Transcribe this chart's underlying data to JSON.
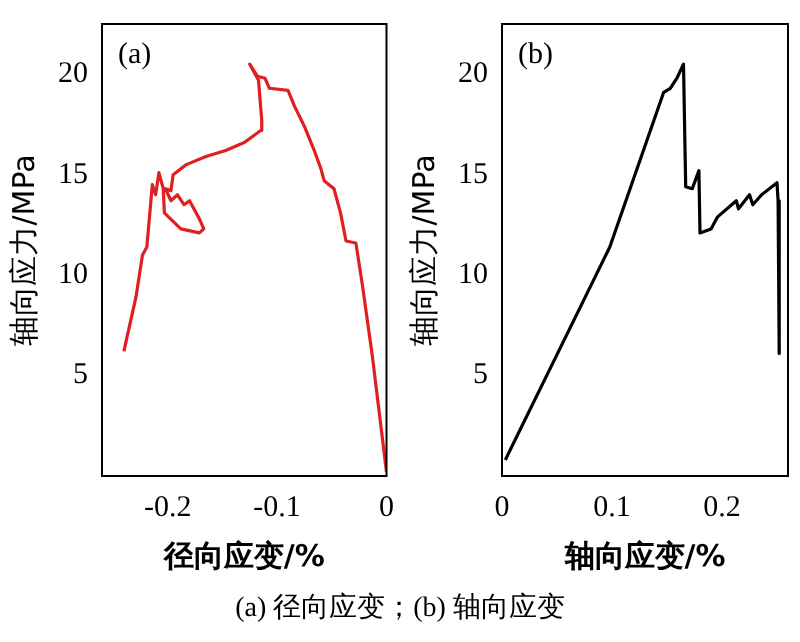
{
  "chart_data": [
    {
      "type": "line",
      "title": "(a)",
      "xlabel": "径向应变/%",
      "ylabel": "轴向应力/MPa",
      "xlim": [
        -0.26,
        0
      ],
      "xticks": [
        -0.2,
        -0.1,
        0
      ],
      "ylim": [
        0,
        22.5
      ],
      "yticks": [
        5,
        10,
        15,
        20
      ],
      "grid": false,
      "legend": false,
      "marker": "none",
      "line_style": "solid",
      "annotations": [
        "(a) 径向应变；(b) 轴向应变"
      ],
      "series": [
        {
          "color": "#e02020",
          "x": [
            -0.24,
            -0.229,
            -0.223,
            -0.219,
            -0.214,
            -0.211,
            -0.208,
            -0.204,
            -0.203,
            -0.188,
            -0.171,
            -0.167,
            -0.171,
            -0.18,
            -0.185,
            -0.191,
            -0.197,
            -0.202,
            -0.197,
            -0.195,
            -0.183,
            -0.165,
            -0.147,
            -0.13,
            -0.115,
            -0.114,
            -0.117,
            -0.125,
            -0.118,
            -0.111,
            -0.107,
            -0.09,
            -0.084,
            -0.075,
            -0.066,
            -0.06,
            -0.057,
            -0.048,
            -0.042,
            -0.037,
            -0.028,
            -0.022,
            -0.013,
            0
          ],
          "values": [
            6.2,
            8.9,
            11.0,
            11.4,
            14.5,
            14.0,
            15.1,
            14.3,
            13.1,
            12.3,
            12.1,
            12.3,
            12.8,
            13.7,
            13.5,
            14.0,
            13.7,
            14.3,
            14.2,
            15.0,
            15.5,
            15.9,
            16.2,
            16.6,
            17.2,
            17.7,
            19.7,
            20.5,
            19.9,
            19.8,
            19.3,
            19.2,
            18.4,
            17.4,
            16.2,
            15.3,
            14.7,
            14.3,
            13.1,
            11.7,
            11.6,
            9.5,
            6.0,
            0.2
          ]
        }
      ]
    },
    {
      "type": "line",
      "title": "(b)",
      "xlabel": "轴向应变/%",
      "ylabel": "轴向应力/MPa",
      "xlim": [
        0,
        0.26
      ],
      "xticks": [
        0,
        0.1,
        0.2
      ],
      "ylim": [
        0,
        22.5
      ],
      "yticks": [
        5,
        10,
        15,
        20
      ],
      "grid": false,
      "legend": false,
      "marker": "none",
      "line_style": "solid",
      "series": [
        {
          "color": "#000000",
          "x": [
            0.003,
            0.081,
            0.098,
            0.147,
            0.153,
            0.159,
            0.165,
            0.167,
            0.173,
            0.179,
            0.18,
            0.19,
            0.196,
            0.213,
            0.215,
            0.225,
            0.228,
            0.236,
            0.25,
            0.251,
            0.252
          ],
          "values": [
            0.8,
            9.5,
            11.4,
            19.1,
            19.3,
            19.8,
            20.5,
            14.4,
            14.3,
            15.2,
            12.1,
            12.3,
            12.9,
            13.7,
            13.3,
            14.0,
            13.5,
            14.0,
            14.6,
            13.7,
            6.1
          ]
        }
      ]
    }
  ]
}
